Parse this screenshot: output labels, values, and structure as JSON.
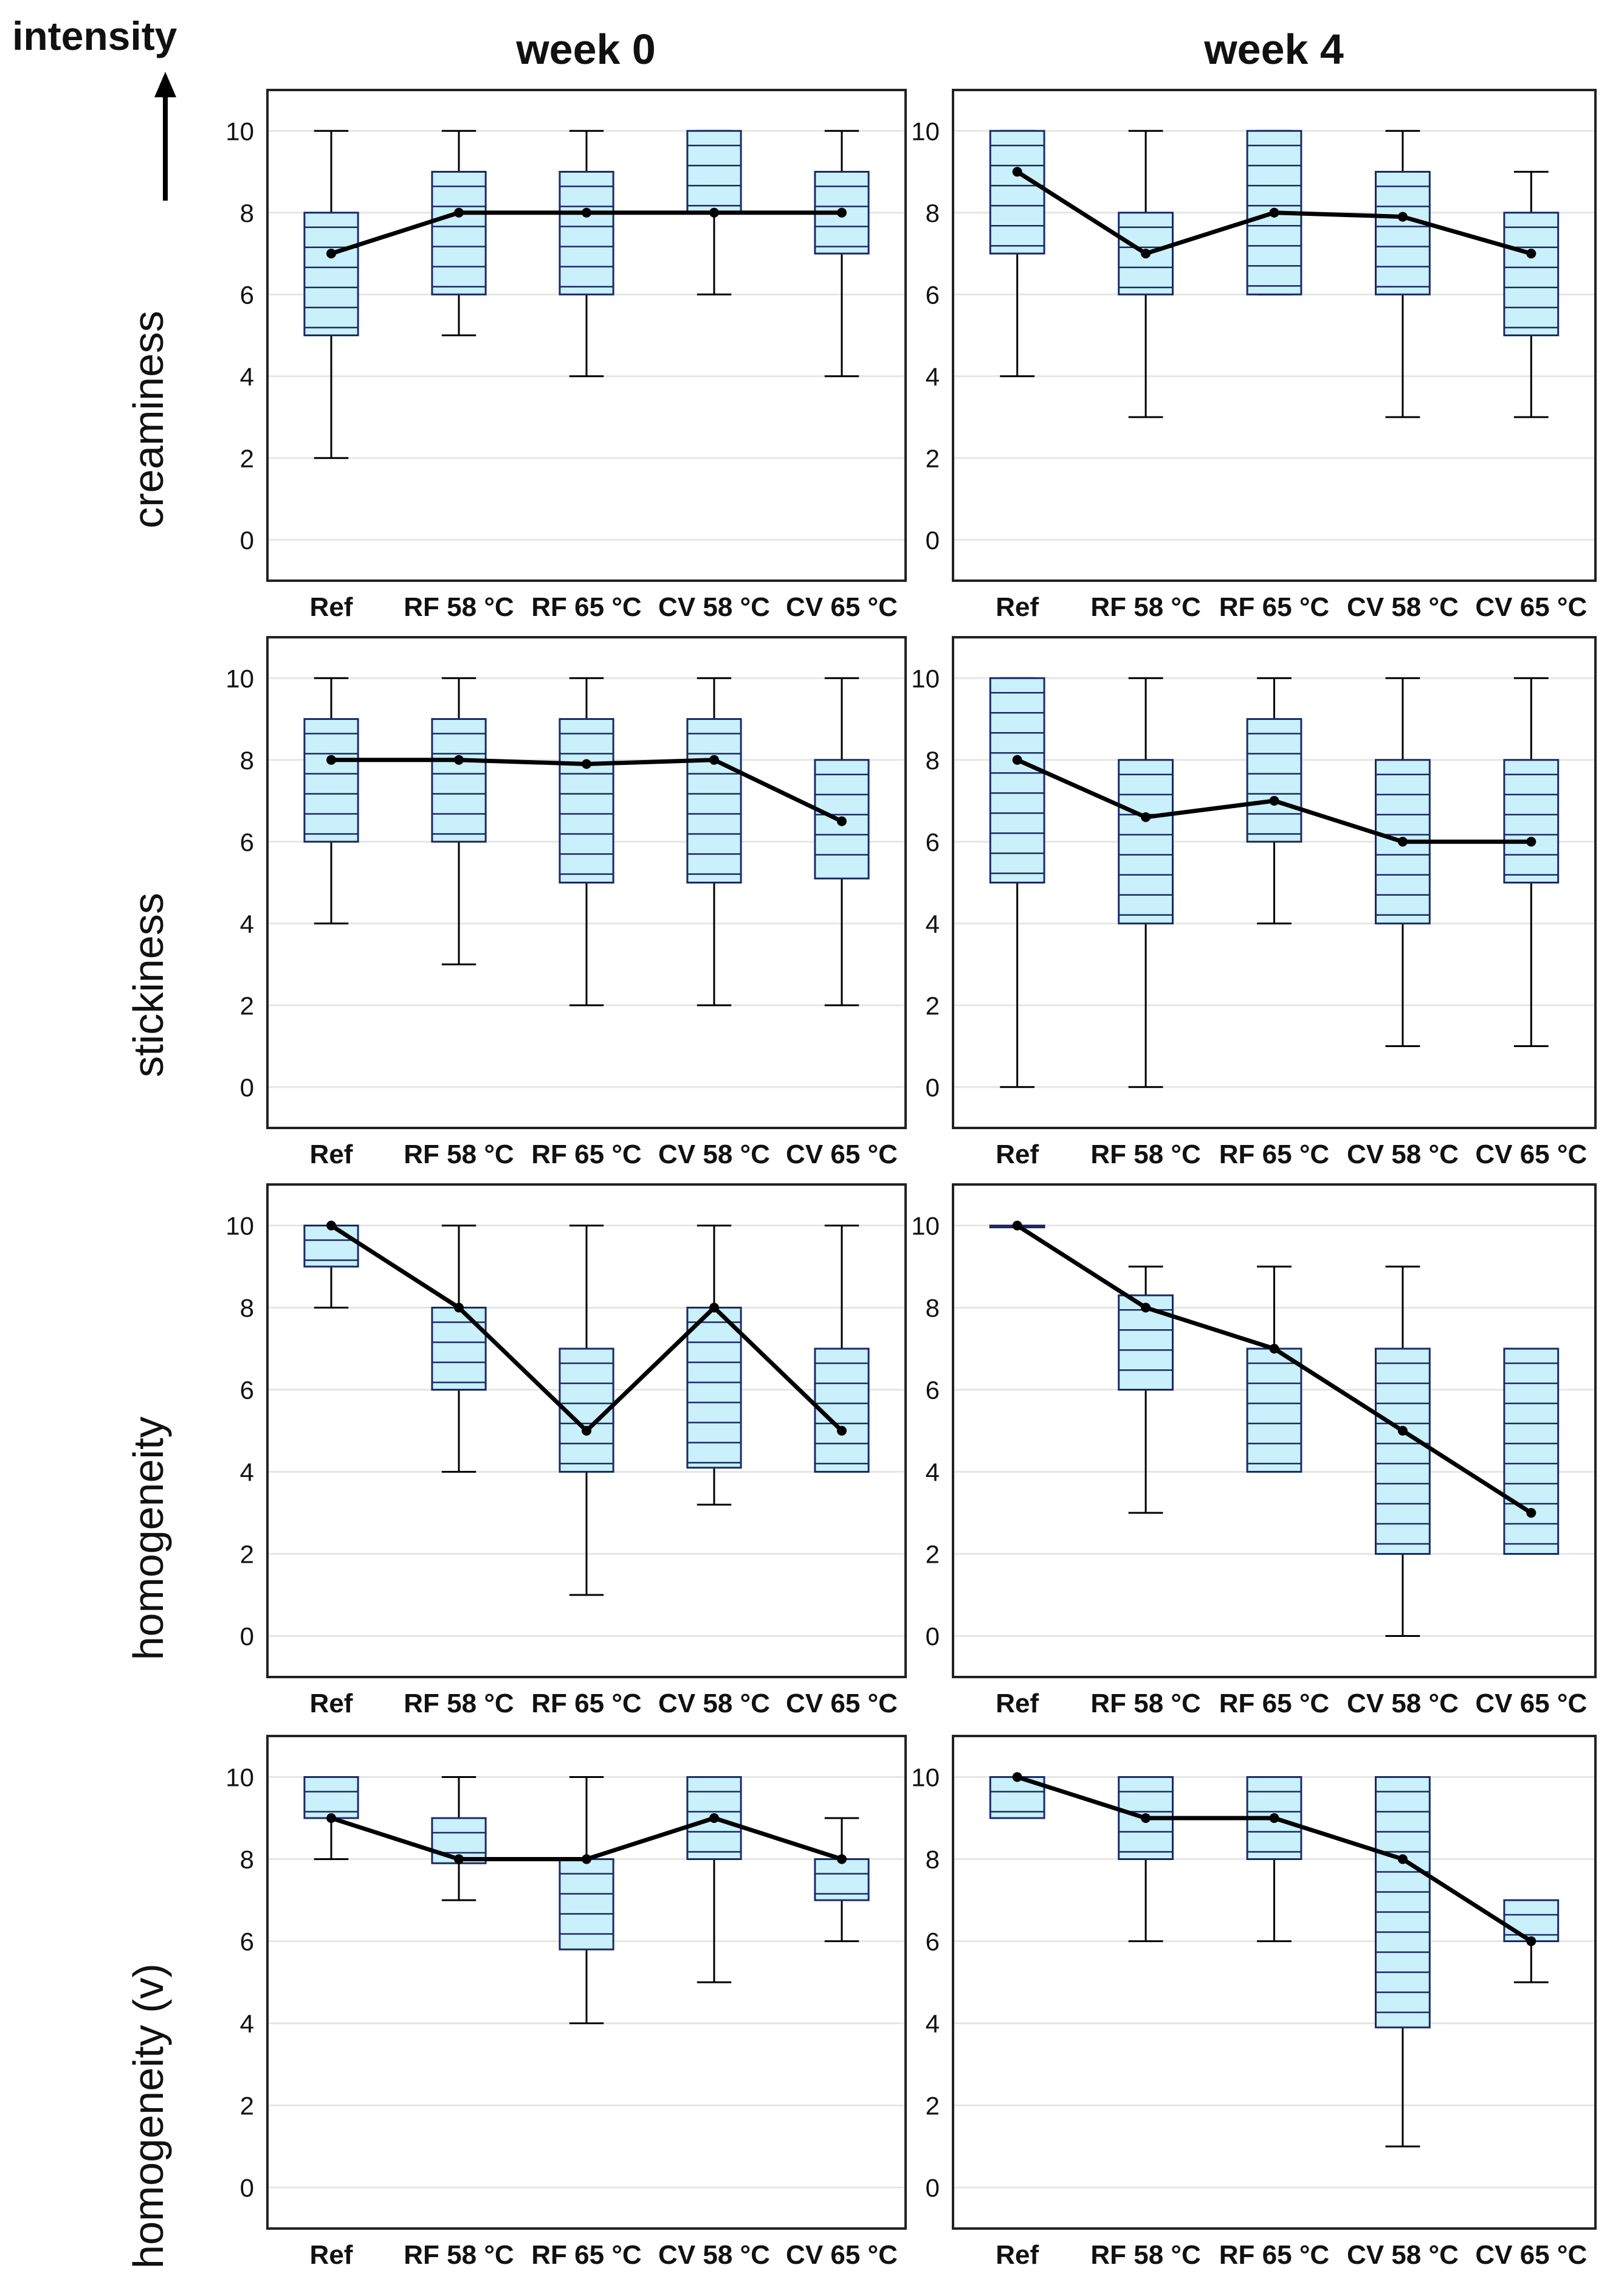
{
  "header": {
    "y_indicator": "intensity",
    "columns": [
      "week 0",
      "week 4"
    ]
  },
  "colors": {
    "box_fill": "#c9f0fb",
    "box_stroke": "#1a2a66",
    "median_line": "#000000",
    "grid": "#e6e6e6"
  },
  "chart_data": [
    {
      "type": "box",
      "ylabel": "creaminess",
      "column": "week 0",
      "categories": [
        "Ref",
        "RF 58 °C",
        "RF 65 °C",
        "CV 58 °C",
        "CV 65 °C"
      ],
      "yticks": [
        "0",
        "2",
        "4",
        "6",
        "8",
        "10"
      ],
      "ylim": [
        -1,
        11
      ],
      "boxes": [
        {
          "min": 2,
          "q1": 5,
          "q3": 8,
          "max": 10,
          "median": 7
        },
        {
          "min": 5,
          "q1": 6,
          "q3": 9,
          "max": 10,
          "median": 8
        },
        {
          "min": 4,
          "q1": 6,
          "q3": 9,
          "max": 10,
          "median": 8
        },
        {
          "min": 6,
          "q1": 8,
          "q3": 10,
          "max": 10,
          "median": 8
        },
        {
          "min": 4,
          "q1": 7,
          "q3": 9,
          "max": 10,
          "median": 8
        }
      ]
    },
    {
      "type": "box",
      "ylabel": "creaminess",
      "column": "week 4",
      "categories": [
        "Ref",
        "RF 58 °C",
        "RF 65 °C",
        "CV 58 °C",
        "CV 65 °C"
      ],
      "yticks": [
        "0",
        "2",
        "4",
        "6",
        "8",
        "10"
      ],
      "ylim": [
        -1,
        11
      ],
      "boxes": [
        {
          "min": 4,
          "q1": 7,
          "q3": 10,
          "max": 10,
          "median": 9
        },
        {
          "min": 3,
          "q1": 6,
          "q3": 8,
          "max": 10,
          "median": 7
        },
        {
          "min": 6,
          "q1": 6,
          "q3": 10,
          "max": 10,
          "median": 8
        },
        {
          "min": 3,
          "q1": 6,
          "q3": 9,
          "max": 10,
          "median": 7.9
        },
        {
          "min": 3,
          "q1": 5,
          "q3": 8,
          "max": 9,
          "median": 7
        }
      ]
    },
    {
      "type": "box",
      "ylabel": "stickiness",
      "column": "week 0",
      "categories": [
        "Ref",
        "RF 58 °C",
        "RF 65 °C",
        "CV 58 °C",
        "CV 65 °C"
      ],
      "yticks": [
        "0",
        "2",
        "4",
        "6",
        "8",
        "10"
      ],
      "ylim": [
        -1,
        11
      ],
      "boxes": [
        {
          "min": 4,
          "q1": 6,
          "q3": 9,
          "max": 10,
          "median": 8
        },
        {
          "min": 3,
          "q1": 6,
          "q3": 9,
          "max": 10,
          "median": 8
        },
        {
          "min": 2,
          "q1": 5,
          "q3": 9,
          "max": 10,
          "median": 7.9
        },
        {
          "min": 2,
          "q1": 5,
          "q3": 9,
          "max": 10,
          "median": 8
        },
        {
          "min": 2,
          "q1": 5.1,
          "q3": 8,
          "max": 10,
          "median": 6.5
        }
      ]
    },
    {
      "type": "box",
      "ylabel": "stickiness",
      "column": "week 4",
      "categories": [
        "Ref",
        "RF 58 °C",
        "RF 65 °C",
        "CV 58 °C",
        "CV 65 °C"
      ],
      "yticks": [
        "0",
        "2",
        "4",
        "6",
        "8",
        "10"
      ],
      "ylim": [
        -1,
        11
      ],
      "boxes": [
        {
          "min": 0,
          "q1": 5,
          "q3": 10,
          "max": 10,
          "median": 8
        },
        {
          "min": 0,
          "q1": 4,
          "q3": 8,
          "max": 10,
          "median": 6.6
        },
        {
          "min": 4,
          "q1": 6,
          "q3": 9,
          "max": 10,
          "median": 7
        },
        {
          "min": 1,
          "q1": 4,
          "q3": 8,
          "max": 10,
          "median": 6
        },
        {
          "min": 1,
          "q1": 5,
          "q3": 8,
          "max": 10,
          "median": 6
        }
      ]
    },
    {
      "type": "box",
      "ylabel": "homogeneity",
      "column": "week 0",
      "categories": [
        "Ref",
        "RF 58 °C",
        "RF 65 °C",
        "CV 58 °C",
        "CV 65 °C"
      ],
      "yticks": [
        "0",
        "2",
        "4",
        "6",
        "8",
        "10"
      ],
      "ylim": [
        -1,
        11
      ],
      "boxes": [
        {
          "min": 8,
          "q1": 9,
          "q3": 10,
          "max": 10,
          "median": 10
        },
        {
          "min": 4,
          "q1": 6,
          "q3": 8,
          "max": 10,
          "median": 8
        },
        {
          "min": 1,
          "q1": 4,
          "q3": 7,
          "max": 10,
          "median": 5
        },
        {
          "min": 3.2,
          "q1": 4.1,
          "q3": 8,
          "max": 10,
          "median": 8
        },
        {
          "min": 4,
          "q1": 4,
          "q3": 7,
          "max": 10,
          "median": 5
        }
      ]
    },
    {
      "type": "box",
      "ylabel": "homogeneity",
      "column": "week 4",
      "categories": [
        "Ref",
        "RF 58 °C",
        "RF 65 °C",
        "CV 58 °C",
        "CV 65 °C"
      ],
      "yticks": [
        "0",
        "2",
        "4",
        "6",
        "8",
        "10"
      ],
      "ylim": [
        -1,
        11
      ],
      "boxes": [
        {
          "min": 10,
          "q1": 10,
          "q3": 10,
          "max": 10,
          "median": 10
        },
        {
          "min": 3,
          "q1": 6,
          "q3": 8.3,
          "max": 9,
          "median": 8
        },
        {
          "min": 4,
          "q1": 4,
          "q3": 7,
          "max": 9,
          "median": 7
        },
        {
          "min": 0,
          "q1": 2,
          "q3": 7,
          "max": 9,
          "median": 5
        },
        {
          "min": 2,
          "q1": 2,
          "q3": 7,
          "max": 7,
          "median": 3
        }
      ]
    },
    {
      "type": "box",
      "ylabel": "homogeneity (v)",
      "column": "week 0",
      "categories": [
        "Ref",
        "RF 58 °C",
        "RF 65 °C",
        "CV 58 °C",
        "CV 65 °C"
      ],
      "yticks": [
        "0",
        "2",
        "4",
        "6",
        "8",
        "10"
      ],
      "ylim": [
        -1,
        11
      ],
      "boxes": [
        {
          "min": 8,
          "q1": 9,
          "q3": 10,
          "max": 10,
          "median": 9
        },
        {
          "min": 7,
          "q1": 7.9,
          "q3": 9,
          "max": 10,
          "median": 8
        },
        {
          "min": 4,
          "q1": 5.8,
          "q3": 8,
          "max": 10,
          "median": 8
        },
        {
          "min": 5,
          "q1": 8,
          "q3": 10,
          "max": 10,
          "median": 9
        },
        {
          "min": 6,
          "q1": 7,
          "q3": 8,
          "max": 9,
          "median": 8
        }
      ]
    },
    {
      "type": "box",
      "ylabel": "homogeneity (v)",
      "column": "week 4",
      "categories": [
        "Ref",
        "RF 58 °C",
        "RF 65 °C",
        "CV 58 °C",
        "CV 65 °C"
      ],
      "yticks": [
        "0",
        "2",
        "4",
        "6",
        "8",
        "10"
      ],
      "ylim": [
        -1,
        11
      ],
      "boxes": [
        {
          "min": 9,
          "q1": 9,
          "q3": 10,
          "max": 10,
          "median": 10
        },
        {
          "min": 6,
          "q1": 8,
          "q3": 10,
          "max": 10,
          "median": 9
        },
        {
          "min": 6,
          "q1": 8,
          "q3": 10,
          "max": 10,
          "median": 9
        },
        {
          "min": 1,
          "q1": 3.9,
          "q3": 10,
          "max": 10,
          "median": 8
        },
        {
          "min": 5,
          "q1": 6,
          "q3": 7,
          "max": 7,
          "median": 6
        }
      ]
    }
  ]
}
